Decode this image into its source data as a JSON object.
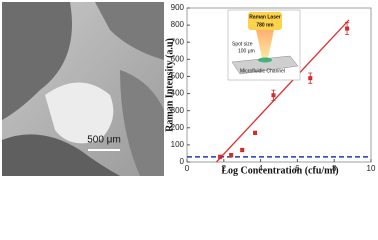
{
  "panel_a": {
    "scale_bar": "500 μm"
  },
  "chart_data": {
    "type": "scatter",
    "x_label": "Log Concentration (cfu/ml)",
    "y_label": "Raman Intensity (a.u)",
    "x": [
      1.8,
      2.4,
      3.0,
      3.7,
      4.7,
      6.7,
      8.7
    ],
    "series": [
      {
        "color": "#d42a2a",
        "values": [
          30,
          40,
          70,
          170,
          390,
          490,
          780
        ],
        "errors": [
          10,
          10,
          10,
          10,
          30,
          30,
          35
        ]
      }
    ],
    "fit": {
      "color": "#e03030",
      "x": [
        1.6,
        8.8
      ],
      "values": [
        0,
        830
      ]
    },
    "baseline": {
      "color": "#1f3aa8",
      "value": 30,
      "style": "dashed"
    },
    "xlim": [
      0,
      10
    ],
    "xticks": [
      0,
      2,
      4,
      6,
      8,
      10
    ],
    "ylim": [
      0,
      900
    ],
    "yticks": [
      0,
      100,
      200,
      300,
      400,
      500,
      600,
      700,
      800,
      900
    ],
    "annotations": [
      "Raman Laser",
      "780 nm",
      "Spot size",
      "100 μm",
      "Microfluidic Channel"
    ]
  }
}
